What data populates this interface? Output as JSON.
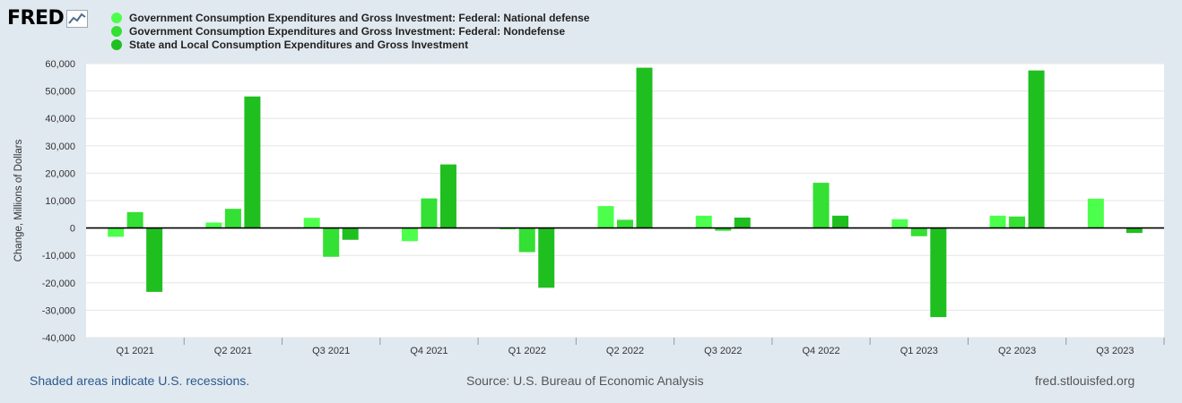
{
  "header": {
    "logo_text": "FRED"
  },
  "chart_data": {
    "type": "bar",
    "ylabel": "Change, Millions of Dollars",
    "ylim": [
      -40000,
      60000
    ],
    "yticks": [
      60000,
      50000,
      40000,
      30000,
      20000,
      10000,
      0,
      -10000,
      -20000,
      -30000,
      -40000
    ],
    "ytick_labels": [
      "60,000",
      "50,000",
      "40,000",
      "30,000",
      "20,000",
      "10,000",
      "0",
      "-10,000",
      "-20,000",
      "-30,000",
      "-40,000"
    ],
    "categories": [
      "Q1 2021",
      "Q2 2021",
      "Q3 2021",
      "Q4 2021",
      "Q1 2022",
      "Q2 2022",
      "Q3 2022",
      "Q4 2022",
      "Q1 2023",
      "Q2 2023",
      "Q3 2023"
    ],
    "series": [
      {
        "name": "Government Consumption Expenditures and Gross Investment: Federal: National defense",
        "color": "#4cff4c",
        "values": [
          -3200,
          2000,
          3700,
          -4800,
          -500,
          8000,
          4500,
          0,
          3200,
          4500,
          10700
        ]
      },
      {
        "name": "Government Consumption Expenditures and Gross Investment: Federal: Nondefense",
        "color": "#33e033",
        "values": [
          5800,
          7000,
          -10500,
          10800,
          -8800,
          3000,
          -1000,
          16500,
          -3000,
          4200,
          0
        ]
      },
      {
        "name": "State and Local Consumption Expenditures and Gross Investment",
        "color": "#20bf20",
        "values": [
          -23300,
          48000,
          -4300,
          23200,
          -21800,
          58500,
          3800,
          4500,
          -32500,
          57500,
          -1800
        ]
      }
    ]
  },
  "footer": {
    "left": "Shaded areas indicate U.S. recessions.",
    "source": "Source: U.S. Bureau of Economic Analysis",
    "site": "fred.stlouisfed.org"
  }
}
